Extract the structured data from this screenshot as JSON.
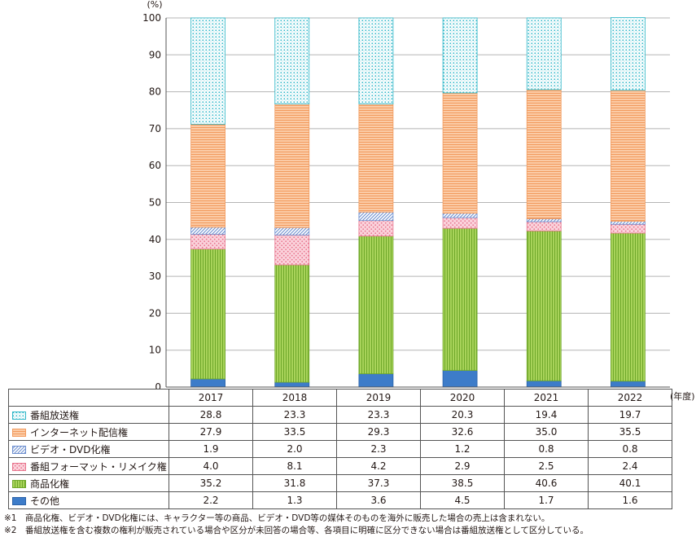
{
  "chart_data": {
    "type": "bar",
    "stacked": true,
    "ylabel": "(%)",
    "ylim": [
      0,
      100
    ],
    "yticks": [
      0,
      10,
      20,
      30,
      40,
      50,
      60,
      70,
      80,
      90,
      100
    ],
    "grid": true,
    "x_unit": "(年度)",
    "categories": [
      "2017",
      "2018",
      "2019",
      "2020",
      "2021",
      "2022"
    ],
    "series": [
      {
        "name": "その他",
        "color": "#3d7cc9",
        "pattern": "solid",
        "values": [
          2.2,
          1.3,
          3.6,
          4.5,
          1.7,
          1.6
        ]
      },
      {
        "name": "商品化権",
        "color": "#8dc63f",
        "pattern": "vlines",
        "values": [
          35.2,
          31.8,
          37.3,
          38.5,
          40.6,
          40.1
        ]
      },
      {
        "name": "番組フォーマット・リメイク権",
        "color": "#f4a6b6",
        "pattern": "dots",
        "values": [
          4.0,
          8.1,
          4.2,
          2.9,
          2.5,
          2.4
        ]
      },
      {
        "name": "ビデオ・DVD化権",
        "color": "#8aa6d8",
        "pattern": "diagonal",
        "values": [
          1.9,
          2.0,
          2.3,
          1.2,
          0.8,
          0.8
        ]
      },
      {
        "name": "インターネット配信権",
        "color": "#f7b27d",
        "pattern": "hlines",
        "values": [
          27.9,
          33.5,
          29.3,
          32.6,
          35.0,
          35.5
        ]
      },
      {
        "name": "番組放送権",
        "color": "#33bccc",
        "pattern": "dots",
        "values": [
          28.8,
          23.3,
          23.3,
          20.3,
          19.4,
          19.7
        ]
      }
    ]
  },
  "table": {
    "rows": [
      {
        "label": "番組放送権",
        "series_index": 5,
        "values": [
          "28.8",
          "23.3",
          "23.3",
          "20.3",
          "19.4",
          "19.7"
        ]
      },
      {
        "label": "インターネット配信権",
        "series_index": 4,
        "values": [
          "27.9",
          "33.5",
          "29.3",
          "32.6",
          "35.0",
          "35.5"
        ]
      },
      {
        "label": "ビデオ・DVD化権",
        "series_index": 3,
        "values": [
          "1.9",
          "2.0",
          "2.3",
          "1.2",
          "0.8",
          "0.8"
        ]
      },
      {
        "label": "番組フォーマット・リメイク権",
        "series_index": 2,
        "values": [
          "4.0",
          "8.1",
          "4.2",
          "2.9",
          "2.5",
          "2.4"
        ]
      },
      {
        "label": "商品化権",
        "series_index": 1,
        "values": [
          "35.2",
          "31.8",
          "37.3",
          "38.5",
          "40.6",
          "40.1"
        ]
      },
      {
        "label": "その他",
        "series_index": 0,
        "values": [
          "2.2",
          "1.3",
          "3.6",
          "4.5",
          "1.7",
          "1.6"
        ]
      }
    ]
  },
  "notes": [
    {
      "mark": "※1",
      "text": "商品化権、ビデオ・DVD化権には、キャラクター等の商品、ビデオ・DVD等の媒体そのものを海外に販売した場合の売上は含まれない。"
    },
    {
      "mark": "※2",
      "text": "番組放送権を含む複数の権利が販売されている場合や区分が未回答の場合等、各項目に明確に区分できない場合は番組放送権として区分している。"
    }
  ]
}
